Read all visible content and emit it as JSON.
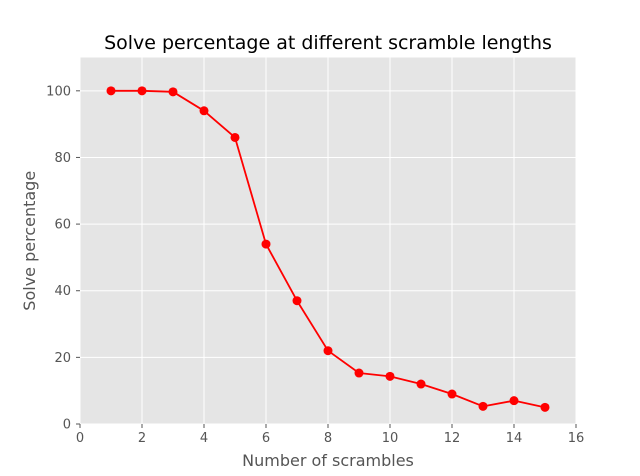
{
  "chart_data": {
    "type": "line",
    "title": "Solve percentage at different scramble lengths",
    "xlabel": "Number of scrambles",
    "ylabel": "Solve percentage",
    "xlim": [
      0,
      16
    ],
    "ylim": [
      0,
      110
    ],
    "xticks": [
      0,
      2,
      4,
      6,
      8,
      10,
      12,
      14,
      16
    ],
    "yticks": [
      0,
      20,
      40,
      60,
      80,
      100
    ],
    "grid": true,
    "series": [
      {
        "color": "#ff0000",
        "marker": "circle",
        "x": [
          1,
          2,
          3,
          4,
          5,
          6,
          7,
          8,
          9,
          10,
          11,
          12,
          13,
          14,
          15
        ],
        "y": [
          100,
          100,
          99.7,
          94,
          86,
          54,
          37,
          22,
          15.3,
          14.3,
          12,
          9,
          5.3,
          7,
          5
        ]
      }
    ]
  }
}
